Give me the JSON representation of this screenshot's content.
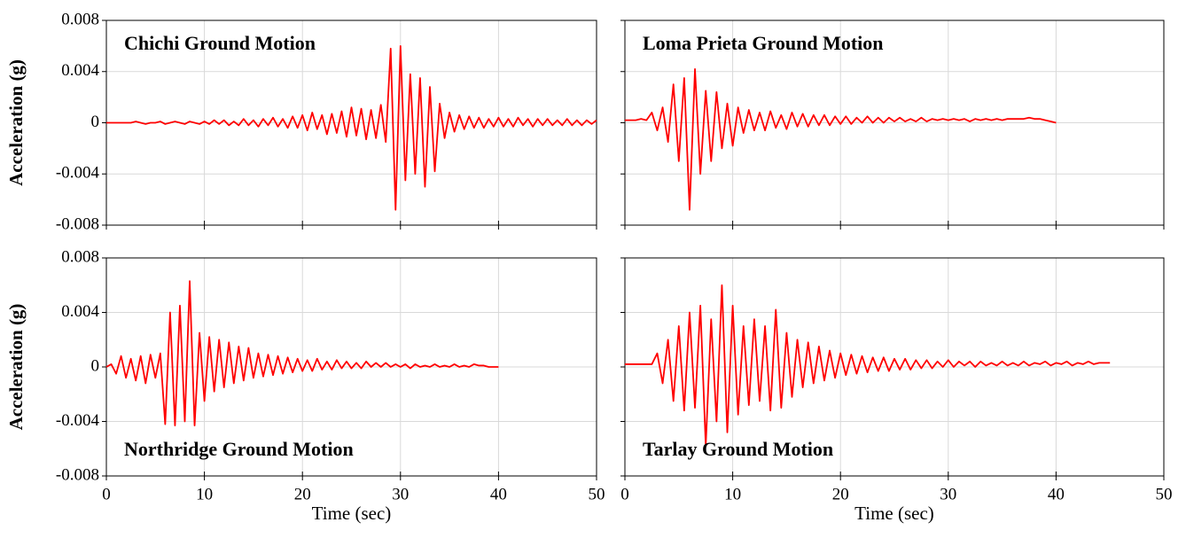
{
  "chart_data": [
    {
      "type": "line",
      "title": "Chichi Ground Motion",
      "title_corner": "top-left",
      "ylabel": "Acceleration (g)",
      "color": "#ff0000",
      "xlim": [
        0,
        50
      ],
      "xticks": [
        0,
        10,
        20,
        30,
        40,
        50
      ],
      "ylim": [
        -0.008,
        0.008
      ],
      "yticks": [
        -0.008,
        -0.004,
        0,
        0.004,
        0.008
      ],
      "show_xtick_labels": false,
      "show_ytick_labels": true,
      "grid": true,
      "x": [
        0,
        0.5,
        1,
        1.5,
        2,
        2.5,
        3,
        3.5,
        4,
        4.5,
        5,
        5.5,
        6,
        6.5,
        7,
        7.5,
        8,
        8.5,
        9,
        9.5,
        10,
        10.5,
        11,
        11.5,
        12,
        12.5,
        13,
        13.5,
        14,
        14.5,
        15,
        15.5,
        16,
        16.5,
        17,
        17.5,
        18,
        18.5,
        19,
        19.5,
        20,
        20.5,
        21,
        21.5,
        22,
        22.5,
        23,
        23.5,
        24,
        24.5,
        25,
        25.5,
        26,
        26.5,
        27,
        27.5,
        28,
        28.5,
        29,
        29.5,
        30,
        30.5,
        31,
        31.5,
        32,
        32.5,
        33,
        33.5,
        34,
        34.5,
        35,
        35.5,
        36,
        36.5,
        37,
        37.5,
        38,
        38.5,
        39,
        39.5,
        40,
        40.5,
        41,
        41.5,
        42,
        42.5,
        43,
        43.5,
        44,
        44.5,
        45,
        45.5,
        46,
        46.5,
        47,
        47.5,
        48,
        48.5,
        49,
        49.5,
        50
      ],
      "values": [
        0,
        0,
        0,
        0,
        0,
        0,
        0.0001,
        0,
        -0.0001,
        0,
        0,
        0.0001,
        -0.0001,
        0,
        0.0001,
        0,
        -0.0001,
        0.0001,
        0,
        -0.0001,
        0.0001,
        -0.0001,
        0.0002,
        -0.0001,
        0.0002,
        -0.0002,
        0.0001,
        -0.0002,
        0.0003,
        -0.0002,
        0.0002,
        -0.0003,
        0.0003,
        -0.0002,
        0.0004,
        -0.0003,
        0.0003,
        -0.0004,
        0.0005,
        -0.0004,
        0.0006,
        -0.0006,
        0.0008,
        -0.0005,
        0.0006,
        -0.0009,
        0.0007,
        -0.0008,
        0.0009,
        -0.0011,
        0.0012,
        -0.001,
        0.0011,
        -0.0013,
        0.001,
        -0.0012,
        0.0014,
        -0.0015,
        0.0058,
        -0.0068,
        0.006,
        -0.0045,
        0.0038,
        -0.004,
        0.0035,
        -0.005,
        0.0028,
        -0.0038,
        0.0015,
        -0.0012,
        0.0008,
        -0.0007,
        0.0006,
        -0.0005,
        0.0005,
        -0.0004,
        0.0004,
        -0.0004,
        0.0003,
        -0.0003,
        0.0004,
        -0.0003,
        0.0003,
        -0.0003,
        0.0004,
        -0.0002,
        0.0003,
        -0.0003,
        0.0003,
        -0.0002,
        0.0003,
        -0.0002,
        0.0002,
        -0.0002,
        0.0003,
        -0.0002,
        0.0002,
        -0.0002,
        0.0002,
        -0.0001,
        0.0002
      ]
    },
    {
      "type": "line",
      "title": "Loma Prieta Ground Motion",
      "title_corner": "top-left",
      "color": "#ff0000",
      "xlim": [
        0,
        50
      ],
      "xticks": [
        0,
        10,
        20,
        30,
        40,
        50
      ],
      "ylim": [
        -0.008,
        0.008
      ],
      "yticks": [
        -0.008,
        -0.004,
        0,
        0.004,
        0.008
      ],
      "show_xtick_labels": false,
      "show_ytick_labels": false,
      "grid": true,
      "x": [
        0,
        0.5,
        1,
        1.5,
        2,
        2.5,
        3,
        3.5,
        4,
        4.5,
        5,
        5.5,
        6,
        6.5,
        7,
        7.5,
        8,
        8.5,
        9,
        9.5,
        10,
        10.5,
        11,
        11.5,
        12,
        12.5,
        13,
        13.5,
        14,
        14.5,
        15,
        15.5,
        16,
        16.5,
        17,
        17.5,
        18,
        18.5,
        19,
        19.5,
        20,
        20.5,
        21,
        21.5,
        22,
        22.5,
        23,
        23.5,
        24,
        24.5,
        25,
        25.5,
        26,
        26.5,
        27,
        27.5,
        28,
        28.5,
        29,
        29.5,
        30,
        30.5,
        31,
        31.5,
        32,
        32.5,
        33,
        33.5,
        34,
        34.5,
        35,
        35.5,
        36,
        36.5,
        37,
        37.5,
        38,
        38.5,
        39,
        39.5,
        40
      ],
      "values": [
        0.0002,
        0.0002,
        0.0002,
        0.0003,
        0.0002,
        0.0008,
        -0.0006,
        0.0012,
        -0.0015,
        0.003,
        -0.003,
        0.0035,
        -0.0068,
        0.0042,
        -0.004,
        0.0025,
        -0.003,
        0.0024,
        -0.002,
        0.0015,
        -0.0018,
        0.0012,
        -0.0008,
        0.001,
        -0.0006,
        0.0008,
        -0.0006,
        0.0009,
        -0.0004,
        0.0006,
        -0.0005,
        0.0008,
        -0.0003,
        0.0007,
        -0.0003,
        0.0006,
        -0.0002,
        0.0006,
        -0.0002,
        0.0005,
        -0.0001,
        0.0005,
        -0.0001,
        0.0004,
        0,
        0.0005,
        0,
        0.0004,
        0,
        0.0004,
        0.0001,
        0.0004,
        0.0001,
        0.0003,
        0.0001,
        0.0004,
        0.0001,
        0.0003,
        0.0002,
        0.0003,
        0.0002,
        0.0003,
        0.0002,
        0.0003,
        0.0001,
        0.0003,
        0.0002,
        0.0003,
        0.0002,
        0.0003,
        0.0002,
        0.0003,
        0.0003,
        0.0003,
        0.0003,
        0.0004,
        0.0003,
        0.0003,
        0.0002,
        0.0001,
        0
      ]
    },
    {
      "type": "line",
      "title": "Northridge Ground Motion",
      "title_corner": "bottom-left",
      "ylabel": "Acceleration (g)",
      "xlabel": "Time (sec)",
      "color": "#ff0000",
      "xlim": [
        0,
        50
      ],
      "xticks": [
        0,
        10,
        20,
        30,
        40,
        50
      ],
      "ylim": [
        -0.008,
        0.008
      ],
      "yticks": [
        -0.008,
        -0.004,
        0,
        0.004,
        0.008
      ],
      "show_xtick_labels": true,
      "show_ytick_labels": true,
      "grid": true,
      "x": [
        0,
        0.5,
        1,
        1.5,
        2,
        2.5,
        3,
        3.5,
        4,
        4.5,
        5,
        5.5,
        6,
        6.5,
        7,
        7.5,
        8,
        8.5,
        9,
        9.5,
        10,
        10.5,
        11,
        11.5,
        12,
        12.5,
        13,
        13.5,
        14,
        14.5,
        15,
        15.5,
        16,
        16.5,
        17,
        17.5,
        18,
        18.5,
        19,
        19.5,
        20,
        20.5,
        21,
        21.5,
        22,
        22.5,
        23,
        23.5,
        24,
        24.5,
        25,
        25.5,
        26,
        26.5,
        27,
        27.5,
        28,
        28.5,
        29,
        29.5,
        30,
        30.5,
        31,
        31.5,
        32,
        32.5,
        33,
        33.5,
        34,
        34.5,
        35,
        35.5,
        36,
        36.5,
        37,
        37.5,
        38,
        38.5,
        39,
        39.5,
        40
      ],
      "values": [
        0,
        0.0002,
        -0.0005,
        0.0008,
        -0.0008,
        0.0006,
        -0.001,
        0.0008,
        -0.0012,
        0.0009,
        -0.0008,
        0.001,
        -0.0042,
        0.004,
        -0.0043,
        0.0045,
        -0.004,
        0.0063,
        -0.0043,
        0.0025,
        -0.0025,
        0.0022,
        -0.0018,
        0.002,
        -0.0015,
        0.0018,
        -0.0012,
        0.0015,
        -0.001,
        0.0014,
        -0.0008,
        0.001,
        -0.0007,
        0.0009,
        -0.0006,
        0.0008,
        -0.0005,
        0.0007,
        -0.0004,
        0.0006,
        -0.0003,
        0.0005,
        -0.0003,
        0.0006,
        -0.0002,
        0.0004,
        -0.0002,
        0.0005,
        -0.0001,
        0.0004,
        -0.0001,
        0.0003,
        -0.0001,
        0.0004,
        0,
        0.0003,
        0,
        0.0003,
        0,
        0.0002,
        0,
        0.0002,
        -0.0001,
        0.0002,
        0,
        0.0001,
        0,
        0.0002,
        0,
        0.0001,
        0,
        0.0002,
        0,
        0.0001,
        0,
        0.0002,
        0.0001,
        0.0001,
        0,
        0,
        0
      ]
    },
    {
      "type": "line",
      "title": "Tarlay Ground Motion",
      "title_corner": "bottom-left",
      "xlabel": "Time (sec)",
      "color": "#ff0000",
      "xlim": [
        0,
        50
      ],
      "xticks": [
        0,
        10,
        20,
        30,
        40,
        50
      ],
      "ylim": [
        -0.008,
        0.008
      ],
      "yticks": [
        -0.008,
        -0.004,
        0,
        0.004,
        0.008
      ],
      "show_xtick_labels": true,
      "show_ytick_labels": false,
      "grid": true,
      "x": [
        0,
        0.5,
        1,
        1.5,
        2,
        2.5,
        3,
        3.5,
        4,
        4.5,
        5,
        5.5,
        6,
        6.5,
        7,
        7.5,
        8,
        8.5,
        9,
        9.5,
        10,
        10.5,
        11,
        11.5,
        12,
        12.5,
        13,
        13.5,
        14,
        14.5,
        15,
        15.5,
        16,
        16.5,
        17,
        17.5,
        18,
        18.5,
        19,
        19.5,
        20,
        20.5,
        21,
        21.5,
        22,
        22.5,
        23,
        23.5,
        24,
        24.5,
        25,
        25.5,
        26,
        26.5,
        27,
        27.5,
        28,
        28.5,
        29,
        29.5,
        30,
        30.5,
        31,
        31.5,
        32,
        32.5,
        33,
        33.5,
        34,
        34.5,
        35,
        35.5,
        36,
        36.5,
        37,
        37.5,
        38,
        38.5,
        39,
        39.5,
        40,
        40.5,
        41,
        41.5,
        42,
        42.5,
        43,
        43.5,
        44,
        44.5,
        45
      ],
      "values": [
        0.0002,
        0.0002,
        0.0002,
        0.0002,
        0.0002,
        0.0002,
        0.001,
        -0.0012,
        0.002,
        -0.0025,
        0.003,
        -0.0032,
        0.004,
        -0.003,
        0.0045,
        -0.0058,
        0.0035,
        -0.004,
        0.006,
        -0.0048,
        0.0045,
        -0.0035,
        0.003,
        -0.0028,
        0.0035,
        -0.0025,
        0.003,
        -0.0032,
        0.0042,
        -0.003,
        0.0025,
        -0.0022,
        0.002,
        -0.0015,
        0.0018,
        -0.0012,
        0.0015,
        -0.001,
        0.0012,
        -0.0008,
        0.001,
        -0.0006,
        0.0009,
        -0.0005,
        0.0008,
        -0.0004,
        0.0007,
        -0.0003,
        0.0007,
        -0.0003,
        0.0006,
        -0.0002,
        0.0006,
        -0.0002,
        0.0005,
        -0.0001,
        0.0005,
        -0.0001,
        0.0004,
        0,
        0.0005,
        0,
        0.0004,
        0.0001,
        0.0004,
        0,
        0.0004,
        0.0001,
        0.0003,
        0.0001,
        0.0004,
        0.0001,
        0.0003,
        0.0001,
        0.0004,
        0.0001,
        0.0003,
        0.0002,
        0.0004,
        0.0001,
        0.0003,
        0.0002,
        0.0004,
        0.0001,
        0.0003,
        0.0002,
        0.0004,
        0.0002,
        0.0003,
        0.0003,
        0.0003
      ]
    }
  ]
}
